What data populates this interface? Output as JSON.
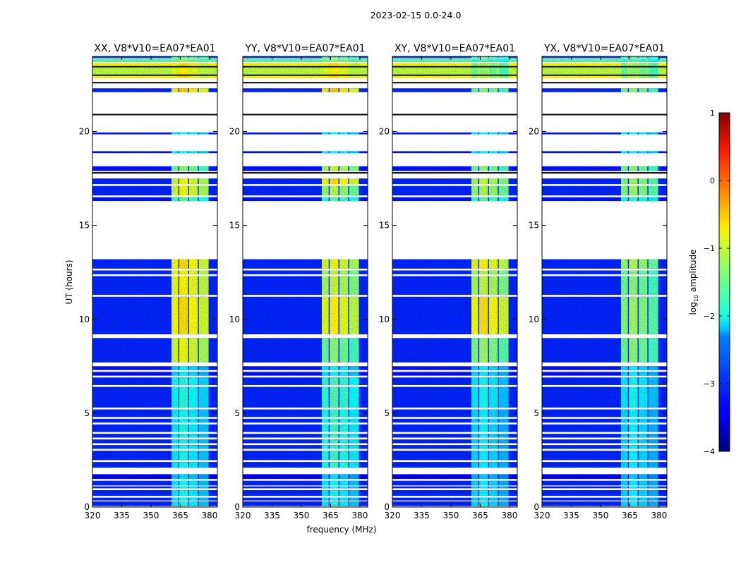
{
  "chart_data": {
    "type": "heatmap",
    "title": "2023-02-15 0.0-24.0",
    "xlabel": "frequency (MHz)",
    "ylabel": "UT (hours)",
    "xlim": [
      320,
      384
    ],
    "ylim": [
      0,
      24
    ],
    "xticks": [
      "320",
      "335",
      "350",
      "365",
      "380"
    ],
    "xtick_values": [
      320,
      335,
      350,
      365,
      380
    ],
    "yticks": [
      "0",
      "5",
      "10",
      "15",
      "20"
    ],
    "ytick_values": [
      0,
      5,
      10,
      15,
      20
    ],
    "panels": [
      {
        "title": "XX, V8*V10=EA07*EA01"
      },
      {
        "title": "YY, V8*V10=EA07*EA01"
      },
      {
        "title": "XY, V8*V10=EA07*EA01"
      },
      {
        "title": "YX, V8*V10=EA07*EA01"
      }
    ],
    "rfi_channels_mhz": [
      [
        360.5,
        364
      ],
      [
        364.5,
        369
      ],
      [
        369.5,
        374
      ],
      [
        374.5,
        379.5
      ]
    ],
    "segments_note": "time ranges in hours, values are log10 amplitude per polarization [XX,YY,XY,YX]",
    "segments": [
      {
        "t": [
          0.05,
          0.3
        ],
        "bg": -3.2,
        "rfi": [
          -2.2,
          -2.2,
          -2.3,
          -2.3
        ]
      },
      {
        "t": [
          0.35,
          0.5
        ],
        "bg": -3.2,
        "rfi": [
          -2.2,
          -2.2,
          -2.3,
          -2.3
        ]
      },
      {
        "t": [
          0.6,
          0.9
        ],
        "bg": -3.2,
        "rfi": [
          -2.2,
          -2.2,
          -2.3,
          -2.3
        ]
      },
      {
        "t": [
          1.0,
          1.1
        ],
        "bg": -3.2,
        "rfi": [
          -2.2,
          -2.2,
          -2.3,
          -2.3
        ]
      },
      {
        "t": [
          1.15,
          1.4
        ],
        "bg": -3.2,
        "rfi": [
          -2.2,
          -2.2,
          -2.3,
          -2.3
        ]
      },
      {
        "t": [
          1.5,
          1.75
        ],
        "bg": -3.4,
        "rfi": [
          -2.4,
          -2.4,
          -2.5,
          -2.5
        ]
      },
      {
        "t": [
          2.1,
          2.4
        ],
        "bg": -3.2,
        "rfi": [
          -2.2,
          -2.0,
          -2.3,
          -2.3
        ]
      },
      {
        "t": [
          2.5,
          3.0
        ],
        "bg": -3.2,
        "rfi": [
          -2.2,
          -2.0,
          -2.3,
          -2.3
        ]
      },
      {
        "t": [
          3.1,
          3.3
        ],
        "bg": -3.2,
        "rfi": [
          -2.2,
          -2.0,
          -2.3,
          -2.3
        ]
      },
      {
        "t": [
          3.4,
          3.6
        ],
        "bg": -3.2,
        "rfi": [
          -2.2,
          -2.0,
          -2.3,
          -2.3
        ]
      },
      {
        "t": [
          3.7,
          3.9
        ],
        "bg": -3.2,
        "rfi": [
          -2.2,
          -2.0,
          -2.3,
          -2.3
        ]
      },
      {
        "t": [
          4.0,
          4.4
        ],
        "bg": -3.2,
        "rfi": [
          -2.2,
          -2.0,
          -2.3,
          -2.3
        ]
      },
      {
        "t": [
          4.5,
          4.7
        ],
        "bg": -3.2,
        "rfi": [
          -2.2,
          -2.0,
          -2.3,
          -2.3
        ]
      },
      {
        "t": [
          4.8,
          5.2
        ],
        "bg": -3.2,
        "rfi": [
          -2.2,
          -2.0,
          -2.3,
          -2.3
        ]
      },
      {
        "t": [
          5.3,
          6.4
        ],
        "bg": -3.2,
        "rfi": [
          -2.1,
          -1.9,
          -2.2,
          -2.2
        ]
      },
      {
        "t": [
          6.5,
          6.9
        ],
        "bg": -3.2,
        "rfi": [
          -2.1,
          -1.9,
          -2.2,
          -2.2
        ]
      },
      {
        "t": [
          7.0,
          7.2
        ],
        "bg": -3.3,
        "rfi": [
          -2.3,
          -2.2,
          -2.3,
          -2.3
        ]
      },
      {
        "t": [
          7.3,
          7.5
        ],
        "bg": -3.3,
        "rfi": [
          -2.3,
          -2.2,
          -2.3,
          -2.3
        ]
      },
      {
        "t": [
          7.7,
          9.0
        ],
        "bg": -3.2,
        "rfi": [
          -1.1,
          -1.6,
          -1.5,
          -1.6
        ]
      },
      {
        "t": [
          9.2,
          11.2
        ],
        "bg": -3.2,
        "rfi": [
          -0.9,
          -1.0,
          -0.9,
          -1.5
        ]
      },
      {
        "t": [
          11.3,
          12.3
        ],
        "bg": -3.2,
        "rfi": [
          -1.0,
          -1.3,
          -1.3,
          -1.6
        ]
      },
      {
        "t": [
          12.4,
          12.6
        ],
        "bg": -3.2,
        "rfi": [
          -1.0,
          -1.3,
          -1.3,
          -1.6
        ]
      },
      {
        "t": [
          12.7,
          13.2
        ],
        "bg": -3.2,
        "rfi": [
          -0.9,
          -1.1,
          -1.0,
          -1.4
        ]
      },
      {
        "t": [
          16.3,
          16.5
        ],
        "bg": -3.3,
        "rfi": [
          -1.8,
          -1.8,
          -1.8,
          -2.0
        ]
      },
      {
        "t": [
          16.6,
          17.1
        ],
        "bg": -3.2,
        "rfi": [
          -1.1,
          -1.4,
          -1.4,
          -1.5
        ]
      },
      {
        "t": [
          17.2,
          17.5
        ],
        "bg": -3.2,
        "rfi": [
          -1.1,
          -0.9,
          -1.3,
          -1.5
        ]
      },
      {
        "t": [
          17.9,
          18.15
        ],
        "bg": -3.3,
        "rfi": [
          -1.6,
          -1.3,
          -1.6,
          -1.6
        ]
      },
      {
        "t": [
          18.85,
          18.95
        ],
        "bg": -3.3,
        "rfi": [
          -2.2,
          -2.2,
          -2.2,
          -2.2
        ]
      },
      {
        "t": [
          19.85,
          19.95
        ],
        "bg": -3.3,
        "rfi": [
          -2.2,
          -2.2,
          -2.2,
          -2.2
        ]
      },
      {
        "t": [
          22.1,
          22.3
        ],
        "bg": -3.2,
        "rfi": [
          -0.8,
          -0.8,
          -1.6,
          -1.6
        ]
      },
      {
        "t": [
          22.85,
          22.95
        ],
        "bg": -0.9,
        "rfi": [
          -0.9,
          -0.9,
          -1.4,
          -1.4
        ]
      },
      {
        "t": [
          23.05,
          23.4
        ],
        "bg": -1.2,
        "rfi": [
          -1.0,
          -1.0,
          -1.6,
          -1.6
        ]
      },
      {
        "t": [
          23.5,
          23.65
        ],
        "bg": -0.9,
        "rfi": [
          -0.9,
          -0.9,
          -1.5,
          -1.5
        ]
      },
      {
        "t": [
          23.7,
          23.85
        ],
        "bg": -1.7,
        "rfi": [
          -1.5,
          -1.5,
          -1.9,
          -1.9
        ]
      },
      {
        "t": [
          23.9,
          24.0
        ],
        "bg": -3.0,
        "rfi": [
          -1.8,
          -1.8,
          -1.8,
          -1.8
        ]
      }
    ],
    "black_lines": [
      17.8,
      20.9,
      22.6,
      23.0,
      23.45
    ],
    "colorbar": {
      "label_prefix": "log",
      "label_sub": "10",
      "label_suffix": " amplitude",
      "range": [
        -4,
        1
      ],
      "ticks": [
        "1",
        "0",
        "−1",
        "−2",
        "−3",
        "−4"
      ],
      "tick_values": [
        1,
        0,
        -1,
        -2,
        -3,
        -4
      ],
      "colormap": "jet"
    }
  }
}
